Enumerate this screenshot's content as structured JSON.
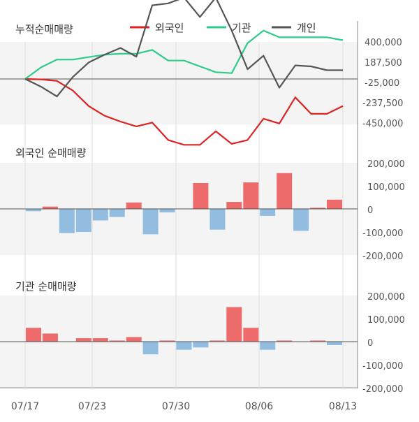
{
  "chart_data": [
    {
      "type": "line",
      "title": "누적순매매량",
      "ylim": [
        -450000,
        400000
      ],
      "yticks": [
        "400,000",
        "187,500",
        "-25,000",
        "-237,500",
        "-450,000"
      ],
      "grid": true,
      "legend_position": "top",
      "series": [
        {
          "name": "외국인",
          "color": "#dd2222",
          "values": [
            0,
            -2000,
            -10000,
            -60000,
            -140000,
            -190000,
            -220000,
            -245000,
            -225000,
            -315000,
            -340000,
            -340000,
            -270000,
            -335000,
            -315000,
            -205000,
            -230000,
            -95000,
            -180000,
            -180000,
            -140000
          ]
        },
        {
          "name": "기관",
          "color": "#2ecc8a",
          "values": [
            0,
            60000,
            100000,
            100000,
            113000,
            125000,
            130000,
            130000,
            150000,
            95000,
            95000,
            65000,
            35000,
            30000,
            185000,
            250000,
            215000,
            215000,
            215000,
            215000,
            200000
          ]
        },
        {
          "name": "개인",
          "color": "#555555",
          "values": [
            0,
            -40000,
            -90000,
            10000,
            85000,
            125000,
            160000,
            115000,
            380000,
            390000,
            420000,
            320000,
            420000,
            250000,
            50000,
            120000,
            -45000,
            70000,
            65000,
            45000,
            45000
          ]
        }
      ]
    },
    {
      "type": "bar",
      "title": "외국인 순매매량",
      "ylim": [
        -200000,
        200000
      ],
      "yticks": [
        "200,000",
        "100,000",
        "0",
        "-100,000",
        "-200,000"
      ],
      "values": [
        -10000,
        10000,
        -105000,
        -100000,
        -50000,
        -35000,
        28000,
        -110000,
        -15000,
        0,
        112000,
        -90000,
        30000,
        115000,
        -30000,
        155000,
        -95000,
        5000,
        40000
      ]
    },
    {
      "type": "bar",
      "title": "기관 순매매량",
      "ylim": [
        -200000,
        200000
      ],
      "yticks": [
        "200,000",
        "100,000",
        "0",
        "-100,000",
        "-200,000"
      ],
      "values": [
        60000,
        35000,
        0,
        15000,
        15000,
        5000,
        20000,
        -55000,
        5000,
        -35000,
        -25000,
        5000,
        150000,
        60000,
        -35000,
        5000,
        0,
        5000,
        -15000
      ]
    }
  ],
  "x_labels": [
    "07/17",
    "07/23",
    "07/30",
    "08/06",
    "08/13"
  ],
  "bar_colors": {
    "positive": "#ee6b6b",
    "negative": "#92bde0"
  }
}
